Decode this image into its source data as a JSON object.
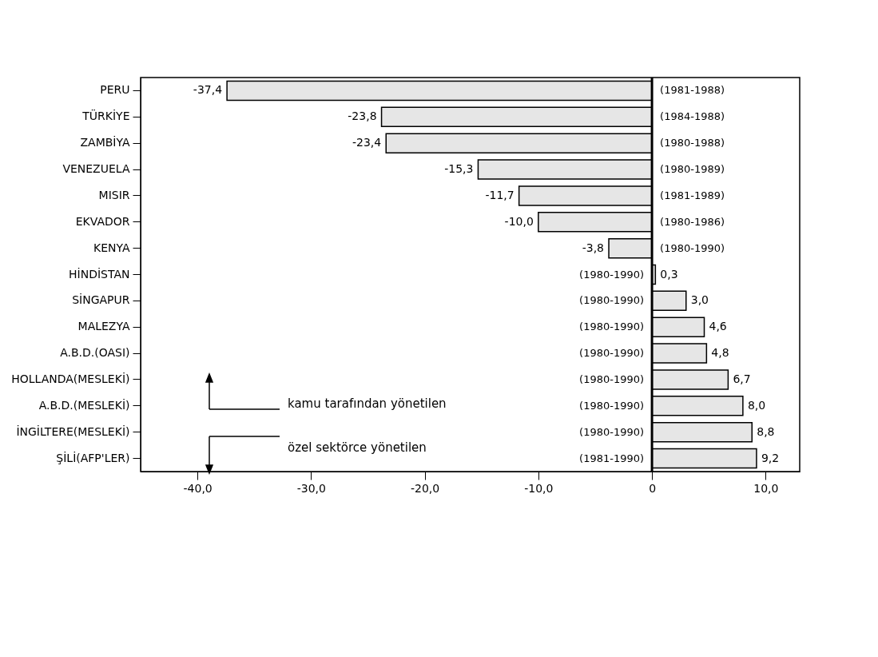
{
  "chart_data": {
    "type": "bar",
    "orientation": "horizontal",
    "categories": [
      "PERU",
      "TÜRKİYE",
      "ZAMBİYA",
      "VENEZUELA",
      "MISIR",
      "EKVADOR",
      "KENYA",
      "HİNDİSTAN",
      "SİNGAPUR",
      "MALEZYA",
      "A.B.D.(OASI)",
      "HOLLANDA(MESLEKİ)",
      "A.B.D.(MESLEKİ)",
      "İNGİLTERE(MESLEKİ)",
      "ŞİLİ(AFP'LER)"
    ],
    "values": [
      -37.4,
      -23.8,
      -23.4,
      -15.3,
      -11.7,
      -10.0,
      -3.8,
      0.3,
      3.0,
      4.6,
      4.8,
      6.7,
      8.0,
      8.8,
      9.2
    ],
    "value_labels": [
      "-37,4",
      "-23,8",
      "-23,4",
      "-15,3",
      "-11,7",
      "-10,0",
      "-3,8",
      "0,3",
      "3,0",
      "4,6",
      "4,8",
      "6,7",
      "8,0",
      "8,8",
      "9,2"
    ],
    "color": "#e6e6e6",
    "xlim": [
      -45,
      13
    ],
    "xticks": [
      {
        "value": -40,
        "label": "-40,0"
      },
      {
        "value": -30,
        "label": "-30,0"
      },
      {
        "value": -20,
        "label": "-20,0"
      },
      {
        "value": -10,
        "label": "-10,0"
      },
      0,
      {
        "value": 10,
        "label": "10,0"
      }
    ],
    "annotations": [
      "(1981-1988)",
      "(1984-1988)",
      "(1980-1988)",
      "(1980-1989)",
      "(1981-1989)",
      "(1980-1986)",
      "(1980-1990)",
      "(1980-1990)",
      "(1980-1990)",
      "(1980-1990)",
      "(1980-1990)",
      "(1980-1990)",
      "(1980-1990)",
      "(1980-1990)",
      "(1981-1990)",
      "kamu tarafından yönetilen",
      "özel sektörce yönetilen"
    ]
  }
}
